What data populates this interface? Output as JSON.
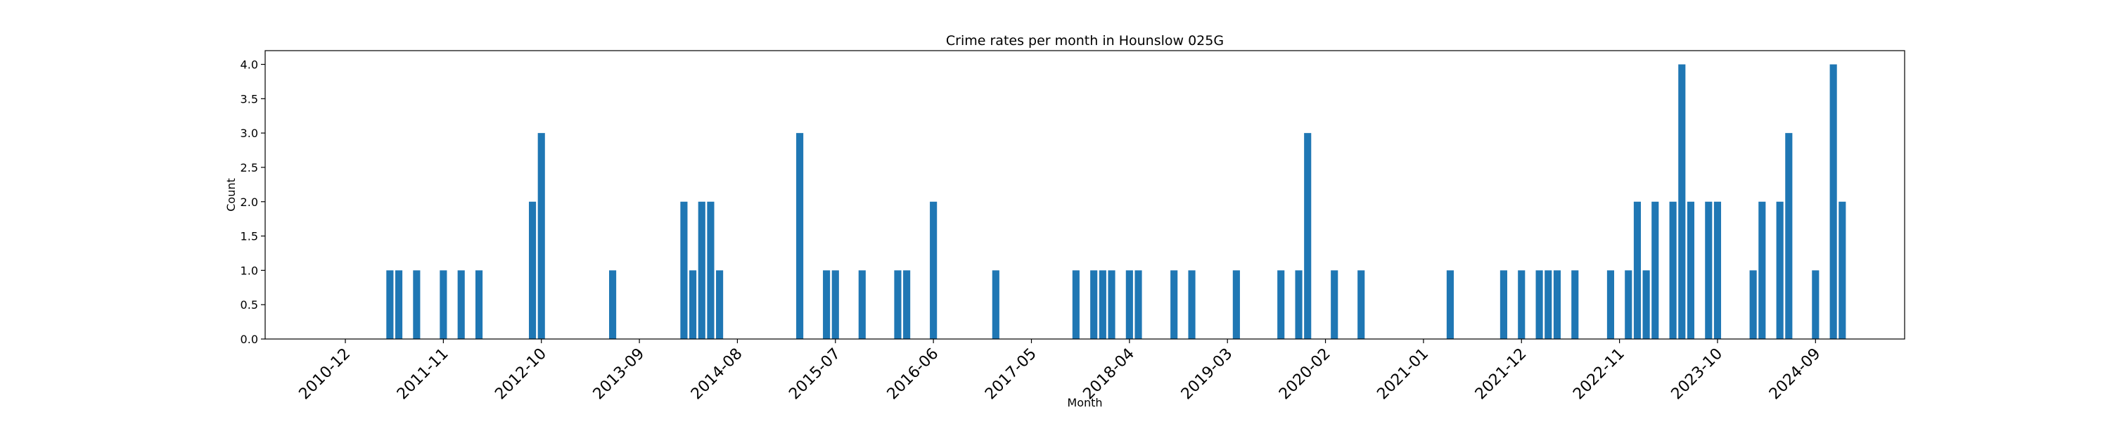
{
  "chart_data": {
    "type": "bar",
    "title": "Crime rates per month in Hounslow 025G",
    "xlabel": "Month",
    "ylabel": "Count",
    "ylim": [
      0,
      4.2
    ],
    "yticks": [
      "0.0",
      "0.5",
      "1.0",
      "1.5",
      "2.0",
      "2.5",
      "3.0",
      "3.5",
      "4.0"
    ],
    "xlim": [
      "2010-03",
      "2025-07"
    ],
    "xticks": [
      "2010-12",
      "2011-11",
      "2012-10",
      "2013-09",
      "2014-08",
      "2015-07",
      "2016-06",
      "2017-05",
      "2018-04",
      "2019-03",
      "2020-02",
      "2021-01",
      "2021-12",
      "2022-11",
      "2023-10",
      "2024-09"
    ],
    "bar_color": "#1f77b4",
    "grid": false,
    "bars": [
      {
        "month": "2011-05",
        "count": 1
      },
      {
        "month": "2011-06",
        "count": 1
      },
      {
        "month": "2011-08",
        "count": 1
      },
      {
        "month": "2011-11",
        "count": 1
      },
      {
        "month": "2012-01",
        "count": 1
      },
      {
        "month": "2012-03",
        "count": 1
      },
      {
        "month": "2012-09",
        "count": 2
      },
      {
        "month": "2012-10",
        "count": 3
      },
      {
        "month": "2013-06",
        "count": 1
      },
      {
        "month": "2014-02",
        "count": 2
      },
      {
        "month": "2014-03",
        "count": 1
      },
      {
        "month": "2014-04",
        "count": 2
      },
      {
        "month": "2014-05",
        "count": 2
      },
      {
        "month": "2014-06",
        "count": 1
      },
      {
        "month": "2015-03",
        "count": 3
      },
      {
        "month": "2015-06",
        "count": 1
      },
      {
        "month": "2015-07",
        "count": 1
      },
      {
        "month": "2015-10",
        "count": 1
      },
      {
        "month": "2016-02",
        "count": 1
      },
      {
        "month": "2016-03",
        "count": 1
      },
      {
        "month": "2016-06",
        "count": 2
      },
      {
        "month": "2017-01",
        "count": 1
      },
      {
        "month": "2017-10",
        "count": 1
      },
      {
        "month": "2017-12",
        "count": 1
      },
      {
        "month": "2018-01",
        "count": 1
      },
      {
        "month": "2018-02",
        "count": 1
      },
      {
        "month": "2018-04",
        "count": 1
      },
      {
        "month": "2018-05",
        "count": 1
      },
      {
        "month": "2018-09",
        "count": 1
      },
      {
        "month": "2018-11",
        "count": 1
      },
      {
        "month": "2019-04",
        "count": 1
      },
      {
        "month": "2019-09",
        "count": 1
      },
      {
        "month": "2019-11",
        "count": 1
      },
      {
        "month": "2019-12",
        "count": 3
      },
      {
        "month": "2020-03",
        "count": 1
      },
      {
        "month": "2020-06",
        "count": 1
      },
      {
        "month": "2021-04",
        "count": 1
      },
      {
        "month": "2021-10",
        "count": 1
      },
      {
        "month": "2021-12",
        "count": 1
      },
      {
        "month": "2022-02",
        "count": 1
      },
      {
        "month": "2022-03",
        "count": 1
      },
      {
        "month": "2022-04",
        "count": 1
      },
      {
        "month": "2022-06",
        "count": 1
      },
      {
        "month": "2022-10",
        "count": 1
      },
      {
        "month": "2022-12",
        "count": 1
      },
      {
        "month": "2023-01",
        "count": 2
      },
      {
        "month": "2023-02",
        "count": 1
      },
      {
        "month": "2023-03",
        "count": 2
      },
      {
        "month": "2023-05",
        "count": 2
      },
      {
        "month": "2023-06",
        "count": 4
      },
      {
        "month": "2023-07",
        "count": 2
      },
      {
        "month": "2023-09",
        "count": 2
      },
      {
        "month": "2023-10",
        "count": 2
      },
      {
        "month": "2024-02",
        "count": 1
      },
      {
        "month": "2024-03",
        "count": 2
      },
      {
        "month": "2024-05",
        "count": 2
      },
      {
        "month": "2024-06",
        "count": 3
      },
      {
        "month": "2024-09",
        "count": 1
      },
      {
        "month": "2024-11",
        "count": 4
      },
      {
        "month": "2024-12",
        "count": 2
      }
    ]
  }
}
